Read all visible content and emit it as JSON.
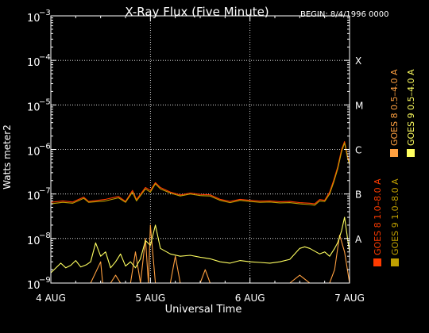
{
  "chart_data": {
    "type": "line",
    "title": "X-Ray Flux (Five Minute)",
    "begin_label": "BEGIN: 8/4/1996 0000",
    "ylabel": "Watts meter2",
    "xlabel": "Universal Time",
    "y_scale": "log",
    "ylim": [
      1e-09,
      0.001
    ],
    "xlim_days": [
      0,
      3
    ],
    "x_ticks": [
      {
        "day": 0,
        "label": "4 AUG"
      },
      {
        "day": 1,
        "label": "5 AUG"
      },
      {
        "day": 2,
        "label": "6 AUG"
      },
      {
        "day": 3,
        "label": "7 AUG"
      }
    ],
    "y_ticks": [
      {
        "exp": -9,
        "base": "10",
        "sup": "−9"
      },
      {
        "exp": -8,
        "base": "10",
        "sup": "−8"
      },
      {
        "exp": -7,
        "base": "10",
        "sup": "−7"
      },
      {
        "exp": -6,
        "base": "10",
        "sup": "−6"
      },
      {
        "exp": -5,
        "base": "10",
        "sup": "−5"
      },
      {
        "exp": -4,
        "base": "10",
        "sup": "−4"
      },
      {
        "exp": -3,
        "base": "10",
        "sup": "−3"
      }
    ],
    "flare_classes": [
      {
        "exp": -8,
        "label": "A"
      },
      {
        "exp": -7,
        "label": "B"
      },
      {
        "exp": -6,
        "label": "C"
      },
      {
        "exp": -5,
        "label": "M"
      },
      {
        "exp": -4,
        "label": "X"
      }
    ],
    "grid": true,
    "legend_position": "right (vertical)",
    "series": [
      {
        "name": "GOES 8 1.0–8.0 A",
        "color": "#ff3b00",
        "points": [
          [
            0,
            6.5e-08
          ],
          [
            0.12,
            7e-08
          ],
          [
            0.22,
            6.6e-08
          ],
          [
            0.33,
            8.5e-08
          ],
          [
            0.38,
            6.8e-08
          ],
          [
            0.55,
            7.6e-08
          ],
          [
            0.68,
            8.8e-08
          ],
          [
            0.75,
            6.8e-08
          ],
          [
            0.82,
            1.2e-07
          ],
          [
            0.86,
            7.5e-08
          ],
          [
            0.95,
            1.4e-07
          ],
          [
            1.0,
            1.2e-07
          ],
          [
            1.05,
            1.8e-07
          ],
          [
            1.1,
            1.4e-07
          ],
          [
            1.2,
            1.1e-07
          ],
          [
            1.3,
            9.5e-08
          ],
          [
            1.4,
            1.05e-07
          ],
          [
            1.5,
            9.8e-08
          ],
          [
            1.6,
            9.6e-08
          ],
          [
            1.7,
            7.6e-08
          ],
          [
            1.8,
            6.8e-08
          ],
          [
            1.9,
            7.6e-08
          ],
          [
            2.0,
            7.2e-08
          ],
          [
            2.1,
            6.9e-08
          ],
          [
            2.2,
            7e-08
          ],
          [
            2.3,
            6.7e-08
          ],
          [
            2.4,
            6.8e-08
          ],
          [
            2.5,
            6.4e-08
          ],
          [
            2.6,
            6.2e-08
          ],
          [
            2.65,
            6e-08
          ],
          [
            2.7,
            7.5e-08
          ],
          [
            2.75,
            7.2e-08
          ],
          [
            2.8,
            1.1e-07
          ],
          [
            2.84,
            2e-07
          ],
          [
            2.88,
            4e-07
          ],
          [
            2.92,
            1e-06
          ],
          [
            2.95,
            1.5e-06
          ],
          [
            2.98,
            7e-07
          ],
          [
            3.0,
            5e-07
          ]
        ]
      },
      {
        "name": "GOES 8 0.5–4.0 A",
        "color": "#ffa040",
        "points": [
          [
            0,
            1e-09
          ],
          [
            0.2,
            1e-09
          ],
          [
            0.4,
            1e-09
          ],
          [
            0.5,
            3e-09
          ],
          [
            0.52,
            1e-09
          ],
          [
            0.6,
            1e-09
          ],
          [
            0.65,
            1.5e-09
          ],
          [
            0.7,
            1e-09
          ],
          [
            0.8,
            1e-09
          ],
          [
            0.85,
            5e-09
          ],
          [
            0.9,
            1e-09
          ],
          [
            0.95,
            1e-08
          ],
          [
            0.98,
            1e-09
          ],
          [
            1.0,
            2e-08
          ],
          [
            1.05,
            1e-09
          ],
          [
            1.2,
            1e-09
          ],
          [
            1.25,
            4e-09
          ],
          [
            1.3,
            1e-09
          ],
          [
            1.5,
            1e-09
          ],
          [
            1.55,
            2e-09
          ],
          [
            1.6,
            1e-09
          ],
          [
            2.0,
            1e-09
          ],
          [
            2.4,
            1e-09
          ],
          [
            2.5,
            1.5e-09
          ],
          [
            2.6,
            1e-09
          ],
          [
            2.8,
            1e-09
          ],
          [
            2.85,
            2e-09
          ],
          [
            2.9,
            1.2e-08
          ],
          [
            2.95,
            5e-09
          ],
          [
            3.0,
            1e-09
          ]
        ]
      },
      {
        "name": "GOES 9 1.0–8.0 A",
        "color": "#c0a000",
        "points": [
          [
            0,
            6e-08
          ],
          [
            0.12,
            6.5e-08
          ],
          [
            0.22,
            6.2e-08
          ],
          [
            0.33,
            8e-08
          ],
          [
            0.38,
            6.5e-08
          ],
          [
            0.55,
            7e-08
          ],
          [
            0.68,
            8.2e-08
          ],
          [
            0.75,
            6.5e-08
          ],
          [
            0.82,
            1.1e-07
          ],
          [
            0.86,
            7e-08
          ],
          [
            0.95,
            1.3e-07
          ],
          [
            1.0,
            1.1e-07
          ],
          [
            1.05,
            1.7e-07
          ],
          [
            1.1,
            1.3e-07
          ],
          [
            1.2,
            1.05e-07
          ],
          [
            1.3,
            9e-08
          ],
          [
            1.4,
            1e-07
          ],
          [
            1.5,
            9.2e-08
          ],
          [
            1.6,
            9e-08
          ],
          [
            1.7,
            7.2e-08
          ],
          [
            1.8,
            6.4e-08
          ],
          [
            1.9,
            7.2e-08
          ],
          [
            2.0,
            6.8e-08
          ],
          [
            2.1,
            6.5e-08
          ],
          [
            2.2,
            6.6e-08
          ],
          [
            2.3,
            6.3e-08
          ],
          [
            2.4,
            6.4e-08
          ],
          [
            2.5,
            6e-08
          ],
          [
            2.6,
            5.8e-08
          ],
          [
            2.65,
            5.6e-08
          ],
          [
            2.7,
            7e-08
          ],
          [
            2.75,
            6.8e-08
          ],
          [
            2.8,
            1e-07
          ],
          [
            2.84,
            1.8e-07
          ],
          [
            2.88,
            3.6e-07
          ],
          [
            2.92,
            9e-07
          ],
          [
            2.95,
            1.4e-06
          ],
          [
            2.98,
            6.5e-07
          ],
          [
            3.0,
            4.5e-07
          ]
        ]
      },
      {
        "name": "GOES 9 0.5–4.0 A",
        "color": "#ffff60",
        "points": [
          [
            0,
            1.7e-09
          ],
          [
            0.1,
            2.8e-09
          ],
          [
            0.15,
            2.2e-09
          ],
          [
            0.2,
            2.5e-09
          ],
          [
            0.25,
            3.2e-09
          ],
          [
            0.3,
            2.3e-09
          ],
          [
            0.36,
            2.6e-09
          ],
          [
            0.4,
            3e-09
          ],
          [
            0.45,
            8e-09
          ],
          [
            0.5,
            4e-09
          ],
          [
            0.55,
            5e-09
          ],
          [
            0.6,
            2.2e-09
          ],
          [
            0.65,
            3e-09
          ],
          [
            0.7,
            4.5e-09
          ],
          [
            0.75,
            2.4e-09
          ],
          [
            0.8,
            3e-09
          ],
          [
            0.85,
            2.2e-09
          ],
          [
            0.9,
            3.5e-09
          ],
          [
            0.95,
            9e-09
          ],
          [
            1.0,
            7e-09
          ],
          [
            1.05,
            2e-08
          ],
          [
            1.1,
            6e-09
          ],
          [
            1.2,
            4.5e-09
          ],
          [
            1.3,
            4e-09
          ],
          [
            1.4,
            4.2e-09
          ],
          [
            1.5,
            3.8e-09
          ],
          [
            1.6,
            3.5e-09
          ],
          [
            1.7,
            3e-09
          ],
          [
            1.8,
            2.8e-09
          ],
          [
            1.9,
            3.2e-09
          ],
          [
            2.0,
            3e-09
          ],
          [
            2.1,
            2.9e-09
          ],
          [
            2.2,
            2.8e-09
          ],
          [
            2.3,
            3e-09
          ],
          [
            2.4,
            3.4e-09
          ],
          [
            2.5,
            6e-09
          ],
          [
            2.55,
            6.5e-09
          ],
          [
            2.6,
            6e-09
          ],
          [
            2.7,
            4.5e-09
          ],
          [
            2.75,
            5e-09
          ],
          [
            2.8,
            4e-09
          ],
          [
            2.85,
            6e-09
          ],
          [
            2.88,
            8e-09
          ],
          [
            2.92,
            1.5e-08
          ],
          [
            2.95,
            3e-08
          ],
          [
            2.98,
            1e-08
          ],
          [
            3.0,
            5e-09
          ]
        ]
      }
    ]
  }
}
